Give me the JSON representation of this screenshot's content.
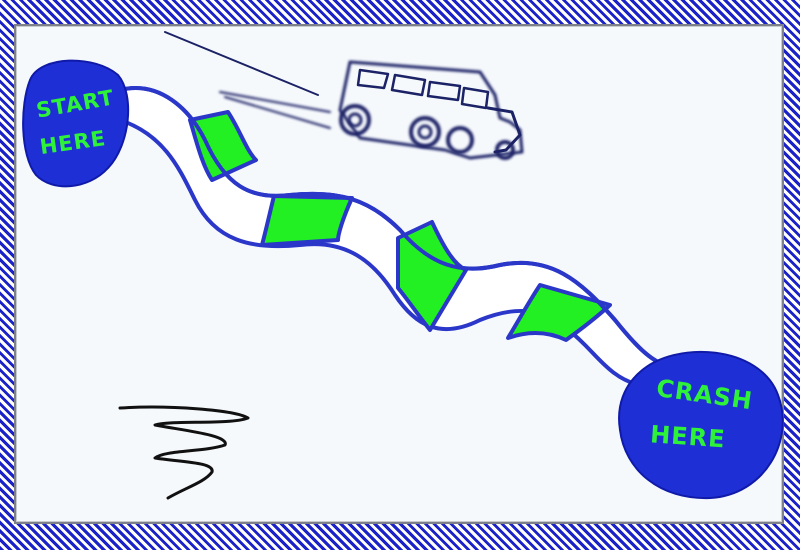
{
  "start_node": {
    "line1": "START",
    "line2": "HERE"
  },
  "end_node": {
    "line1": "CRASH",
    "line2": "HERE"
  },
  "colors": {
    "frame_blue": "#1a22c8",
    "node_blue": "#1f2fd6",
    "path_outline": "#2a37c9",
    "path_fill_green": "#22f022",
    "label_green": "#2ef23a",
    "truck_ink": "#1b2266",
    "squiggle_ink": "#111111"
  },
  "icons": {
    "vehicle": "truck-icon",
    "squiggle": "squiggle-icon"
  }
}
